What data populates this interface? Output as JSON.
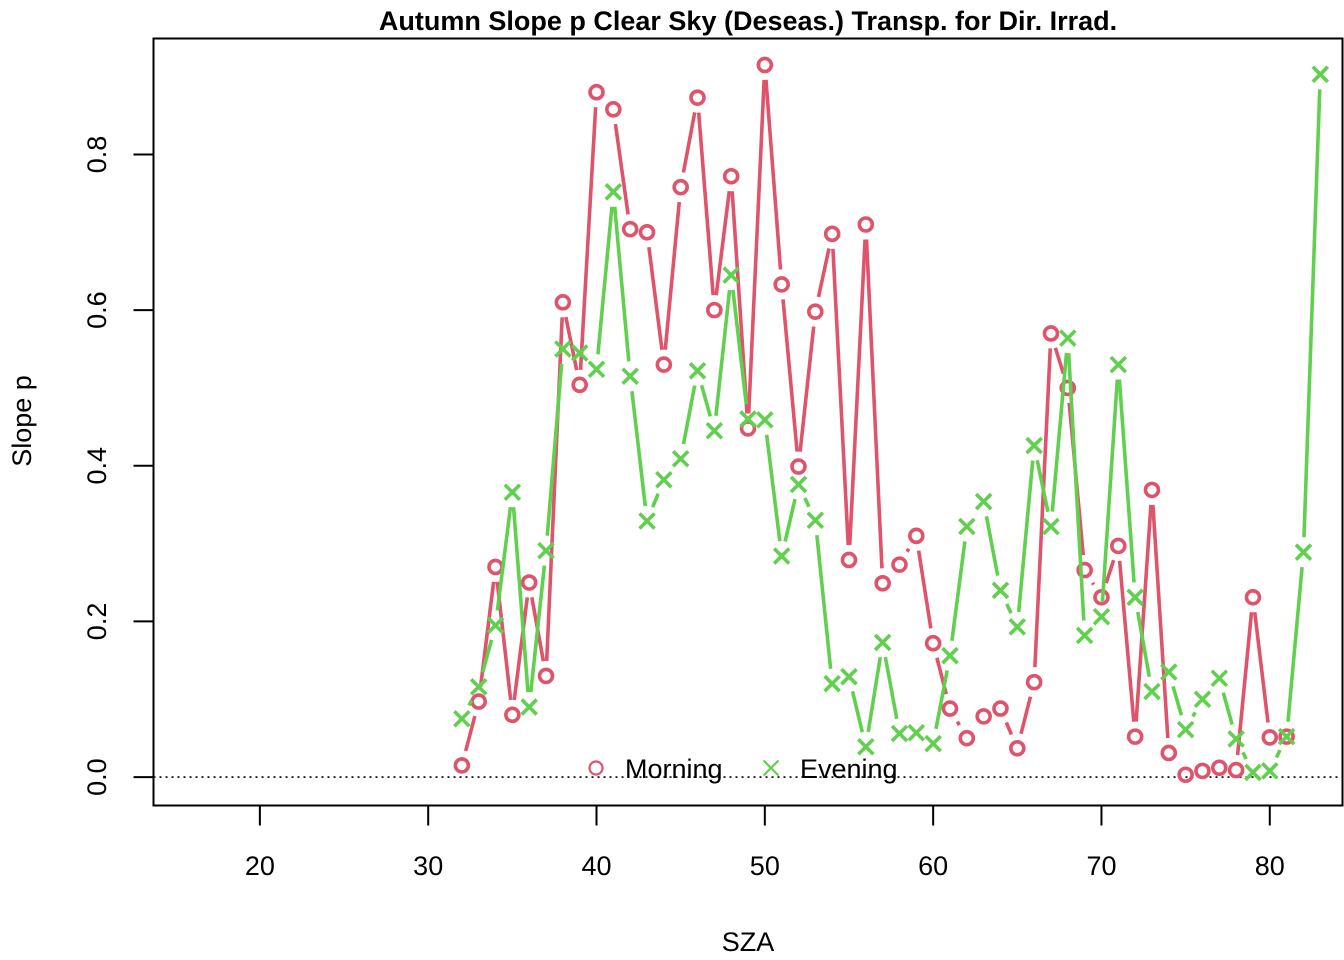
{
  "chart_data": {
    "type": "line",
    "title": "Autumn Slope p Clear Sky (Deseas.) Transp. for Dir. Irrad.",
    "xlabel": "SZA",
    "ylabel": "Slope p",
    "xlim": [
      13.68,
      84.32
    ],
    "ylim": [
      -0.0365,
      0.949
    ],
    "xticks": [
      20,
      30,
      40,
      50,
      60,
      70,
      80
    ],
    "yticks": [
      0.0,
      0.2,
      0.4,
      0.6,
      0.8
    ],
    "ytick_labels": [
      "0.0",
      "0.2",
      "0.4",
      "0.6",
      "0.8"
    ],
    "reference_line": {
      "y": 0,
      "style": "dotted"
    },
    "legend": {
      "position": "bottom-center",
      "horizontal": true
    },
    "series": [
      {
        "name": "Morning",
        "color": "#DF536B",
        "marker": "circle",
        "x": [
          32,
          33,
          34,
          35,
          36,
          37,
          38,
          39,
          40,
          41,
          42,
          43,
          44,
          45,
          46,
          47,
          48,
          49,
          50,
          51,
          52,
          53,
          54,
          55,
          56,
          57,
          58,
          59,
          60,
          61,
          62,
          63,
          64,
          65,
          66,
          67,
          68,
          69,
          70,
          71,
          72,
          73,
          74,
          75,
          76,
          77,
          78,
          79,
          80,
          81
        ],
        "y": [
          0.015,
          0.097,
          0.27,
          0.08,
          0.25,
          0.13,
          0.61,
          0.504,
          0.88,
          0.858,
          0.704,
          0.7,
          0.53,
          0.758,
          0.873,
          0.6,
          0.772,
          0.448,
          0.915,
          0.633,
          0.399,
          0.598,
          0.698,
          0.279,
          0.71,
          0.249,
          0.273,
          0.31,
          0.172,
          0.088,
          0.05,
          0.078,
          0.088,
          0.037,
          0.122,
          0.57,
          0.5,
          0.266,
          0.231,
          0.297,
          0.052,
          0.369,
          0.031,
          0.003,
          0.008,
          0.012,
          0.009,
          0.231,
          0.051,
          0.052
        ]
      },
      {
        "name": "Evening",
        "color": "#61D04F",
        "marker": "cross",
        "x": [
          32,
          33,
          34,
          35,
          36,
          37,
          38,
          39,
          40,
          41,
          42,
          43,
          44,
          45,
          46,
          47,
          48,
          49,
          50,
          51,
          52,
          53,
          54,
          55,
          56,
          57,
          58,
          59,
          60,
          61,
          62,
          63,
          64,
          65,
          66,
          67,
          68,
          69,
          70,
          71,
          72,
          73,
          74,
          75,
          76,
          77,
          78,
          79,
          80,
          81,
          82,
          83
        ],
        "y": [
          0.075,
          0.116,
          0.195,
          0.366,
          0.09,
          0.291,
          0.55,
          0.545,
          0.524,
          0.752,
          0.515,
          0.329,
          0.382,
          0.409,
          0.522,
          0.445,
          0.645,
          0.46,
          0.459,
          0.284,
          0.376,
          0.33,
          0.12,
          0.129,
          0.039,
          0.173,
          0.056,
          0.057,
          0.043,
          0.156,
          0.322,
          0.354,
          0.24,
          0.193,
          0.426,
          0.322,
          0.564,
          0.182,
          0.206,
          0.53,
          0.231,
          0.11,
          0.135,
          0.061,
          0.1,
          0.127,
          0.049,
          0.006,
          0.008,
          0.052,
          0.289,
          0.903
        ]
      }
    ]
  }
}
